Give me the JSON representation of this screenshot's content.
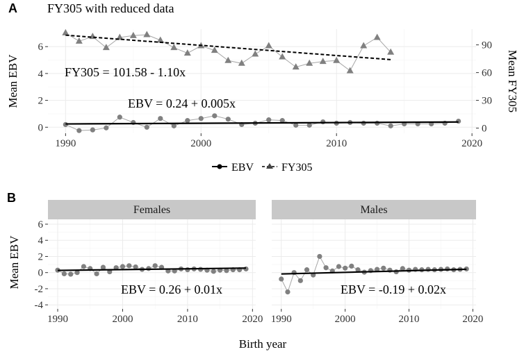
{
  "panel_a": {
    "letter": "A",
    "title": "FY305 with reduced data",
    "legend_ebv": "EBV",
    "legend_fy305": "FY305"
  },
  "panel_b": {
    "letter": "B",
    "shared_xlabel": "Birth year"
  },
  "chart_data": [
    {
      "type": "line",
      "title": "FY305 with reduced data",
      "xlabel": "",
      "ylabel": "Mean EBV",
      "y2label": "Mean FY305",
      "xlim": [
        1988.7,
        2020.3
      ],
      "ylim": [
        -0.45,
        7.3
      ],
      "y2lim": [
        -5.6,
        107
      ],
      "xticks": [
        1990,
        2000,
        2010,
        2020
      ],
      "yticks": [
        0,
        2,
        4,
        6
      ],
      "y2ticks": [
        0,
        30,
        60,
        90
      ],
      "grid": true,
      "legend_position": "bottom",
      "series": [
        {
          "name": "EBV",
          "axis": "left",
          "marker": "circle",
          "x": [
            1990,
            1991,
            1992,
            1993,
            1994,
            1995,
            1996,
            1997,
            1998,
            1999,
            2000,
            2001,
            2002,
            2003,
            2004,
            2005,
            2006,
            2007,
            2008,
            2009,
            2010,
            2011,
            2012,
            2013,
            2014,
            2015,
            2016,
            2017,
            2018,
            2019
          ],
          "values": [
            0.2,
            -0.25,
            -0.2,
            -0.05,
            0.75,
            0.35,
            0.0,
            0.65,
            0.1,
            0.5,
            0.65,
            0.85,
            0.6,
            0.2,
            0.3,
            0.55,
            0.5,
            0.15,
            0.15,
            0.4,
            0.3,
            0.35,
            0.3,
            0.3,
            0.1,
            0.25,
            0.25,
            0.25,
            0.3,
            0.45
          ],
          "trend": {
            "label": "EBV = 0.24 + 0.005x",
            "intercept": 0.24,
            "slope": 0.005,
            "x0": 1989,
            "x_range": [
              1990,
              2019
            ]
          }
        },
        {
          "name": "FY305",
          "axis": "right",
          "marker": "triangle",
          "x": [
            1990,
            1991,
            1992,
            1993,
            1994,
            1995,
            1996,
            1997,
            1998,
            1999,
            2000,
            2001,
            2002,
            2003,
            2004,
            2005,
            2006,
            2007,
            2008,
            2009,
            2010,
            2011,
            2012,
            2013,
            2014
          ],
          "values": [
            103,
            94,
            99,
            87,
            98,
            100,
            101,
            95,
            87,
            81,
            89,
            84,
            73,
            70,
            80,
            89,
            77,
            66,
            70,
            72,
            73,
            62,
            89,
            98,
            82
          ],
          "trend": {
            "label": "FY305 = 101.58 - 1.10x",
            "intercept": 101.58,
            "slope": -1.1,
            "x0": 1989,
            "x_range": [
              1990,
              2014
            ]
          }
        }
      ]
    },
    {
      "type": "line",
      "facet": "Females",
      "xlabel": "Birth year",
      "ylabel": "Mean EBV",
      "xlim": [
        1988.5,
        2020.5
      ],
      "ylim": [
        -4.5,
        6.6
      ],
      "xticks": [
        1990,
        2000,
        2010,
        2020
      ],
      "yticks": [
        -4,
        -2,
        0,
        2,
        4,
        6
      ],
      "grid": true,
      "series": [
        {
          "name": "EBV",
          "marker": "circle",
          "x": [
            1990,
            1991,
            1992,
            1993,
            1994,
            1995,
            1996,
            1997,
            1998,
            1999,
            2000,
            2001,
            2002,
            2003,
            2004,
            2005,
            2006,
            2007,
            2008,
            2009,
            2010,
            2011,
            2012,
            2013,
            2014,
            2015,
            2016,
            2017,
            2018,
            2019
          ],
          "values": [
            0.3,
            -0.15,
            -0.2,
            0.0,
            0.75,
            0.5,
            -0.15,
            0.65,
            0.1,
            0.6,
            0.75,
            0.85,
            0.7,
            0.4,
            0.5,
            0.85,
            0.65,
            0.2,
            0.2,
            0.45,
            0.35,
            0.45,
            0.4,
            0.3,
            0.15,
            0.3,
            0.25,
            0.35,
            0.35,
            0.45
          ],
          "trend": {
            "label": "EBV = 0.26 + 0.01x",
            "intercept": 0.26,
            "slope": 0.01,
            "x0": 1989,
            "x_range": [
              1990,
              2019
            ]
          }
        }
      ]
    },
    {
      "type": "line",
      "facet": "Males",
      "xlabel": "Birth year",
      "ylabel": "Mean EBV",
      "xlim": [
        1988.5,
        2020.5
      ],
      "ylim": [
        -4.5,
        6.6
      ],
      "xticks": [
        1990,
        2000,
        2010,
        2020
      ],
      "yticks": [
        -4,
        -2,
        0,
        2,
        4,
        6
      ],
      "grid": true,
      "series": [
        {
          "name": "EBV",
          "marker": "circle",
          "x": [
            1990,
            1991,
            1992,
            1993,
            1994,
            1995,
            1996,
            1997,
            1998,
            1999,
            2000,
            2001,
            2002,
            2003,
            2004,
            2005,
            2006,
            2007,
            2008,
            2009,
            2010,
            2011,
            2012,
            2013,
            2014,
            2015,
            2016,
            2017,
            2018,
            2019
          ],
          "values": [
            -0.8,
            -2.4,
            0.0,
            -1.0,
            0.35,
            -0.3,
            2.0,
            0.6,
            0.2,
            0.75,
            0.55,
            0.8,
            0.35,
            0.05,
            0.25,
            0.4,
            0.55,
            0.3,
            0.1,
            0.5,
            0.3,
            0.4,
            0.35,
            0.4,
            0.35,
            0.4,
            0.45,
            0.35,
            0.4,
            0.45
          ],
          "trend": {
            "label": "EBV = -0.19 + 0.02x",
            "intercept": -0.19,
            "slope": 0.02,
            "x0": 1989,
            "x_range": [
              1990,
              2019
            ]
          }
        }
      ]
    }
  ],
  "colors": {
    "points": "#808080",
    "point_line": "#a6a6a6",
    "trend": "#000000",
    "strip": "#c8c8c8"
  }
}
